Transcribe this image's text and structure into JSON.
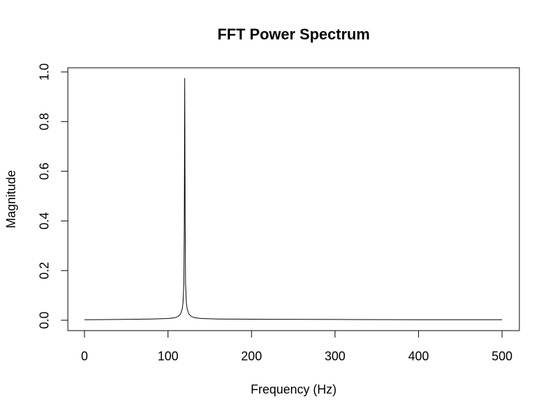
{
  "chart_data": {
    "type": "line",
    "title": "FFT Power Spectrum",
    "xlabel": "Frequency (Hz)",
    "ylabel": "Magnitude",
    "xlim": [
      0,
      500
    ],
    "ylim": [
      0,
      1.0
    ],
    "x_ticks": [
      "0",
      "100",
      "200",
      "300",
      "400",
      "500"
    ],
    "y_ticks": [
      "0.0",
      "0.2",
      "0.4",
      "0.6",
      "0.8",
      "1.0"
    ],
    "grid": false,
    "line_color": "#000000",
    "series": [
      {
        "x": [
          0,
          40,
          80,
          100,
          108,
          112,
          115,
          117,
          118,
          119,
          119.5,
          120,
          120.5,
          121,
          122,
          123,
          125,
          128,
          132,
          140,
          160,
          200,
          300,
          400,
          500
        ],
        "y": [
          0.002,
          0.003,
          0.005,
          0.007,
          0.01,
          0.015,
          0.025,
          0.045,
          0.07,
          0.15,
          0.4,
          0.975,
          0.4,
          0.15,
          0.07,
          0.045,
          0.025,
          0.015,
          0.01,
          0.007,
          0.005,
          0.004,
          0.003,
          0.002,
          0.002
        ]
      }
    ]
  }
}
